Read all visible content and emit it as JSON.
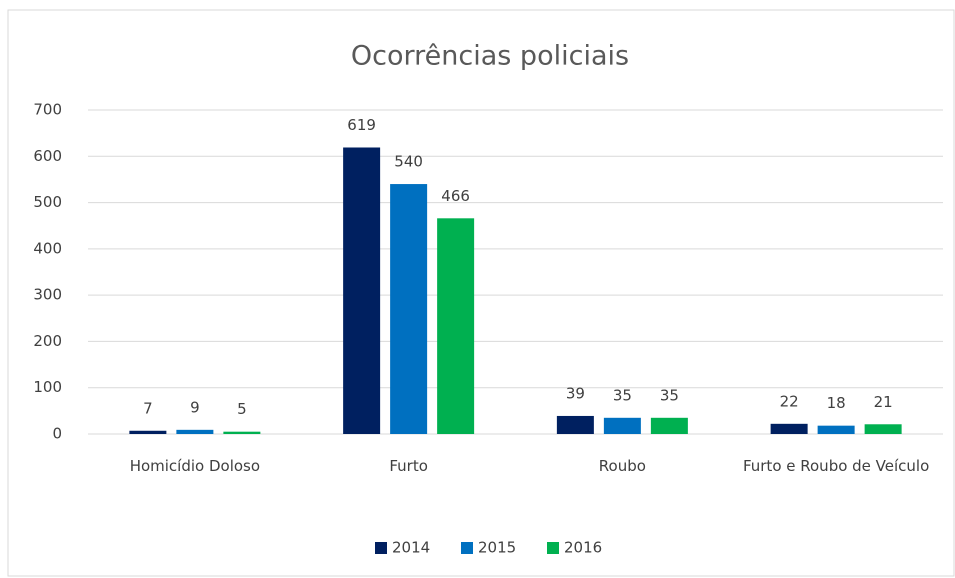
{
  "chart_data": {
    "type": "bar",
    "title": "Ocorrências policiais",
    "categories": [
      "Homicídio Doloso",
      "Furto",
      "Roubo",
      "Furto e Roubo de Veículo"
    ],
    "series": [
      {
        "name": "2014",
        "color": "#002060",
        "values": [
          7,
          619,
          39,
          22
        ]
      },
      {
        "name": "2015",
        "color": "#0070c0",
        "values": [
          9,
          540,
          35,
          18
        ]
      },
      {
        "name": "2016",
        "color": "#00b050",
        "values": [
          5,
          466,
          35,
          21
        ]
      }
    ],
    "ylim": [
      0,
      700
    ],
    "yticks": [
      0,
      100,
      200,
      300,
      400,
      500,
      600,
      700
    ],
    "grid": true,
    "legend": "bottom"
  }
}
